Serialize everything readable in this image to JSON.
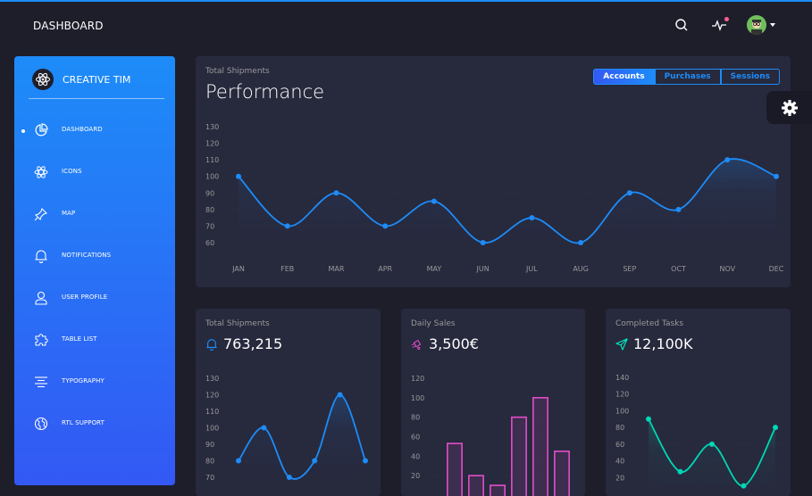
{
  "navbar": {
    "brand": "DASHBOARD"
  },
  "sidebar": {
    "logo_text": "CREATIVE TIM",
    "items": [
      {
        "label": "DASHBOARD",
        "icon": "chart-pie-icon",
        "active": true
      },
      {
        "label": "ICONS",
        "icon": "atom-icon",
        "active": false
      },
      {
        "label": "MAP",
        "icon": "pin-icon",
        "active": false
      },
      {
        "label": "NOTIFICATIONS",
        "icon": "bell-icon",
        "active": false
      },
      {
        "label": "USER PROFILE",
        "icon": "user-icon",
        "active": false
      },
      {
        "label": "TABLE LIST",
        "icon": "puzzle-icon",
        "active": false
      },
      {
        "label": "TYPOGRAPHY",
        "icon": "align-center-icon",
        "active": false
      },
      {
        "label": "RTL SUPPORT",
        "icon": "world-icon",
        "active": false
      }
    ]
  },
  "main_chart": {
    "subtitle": "Total Shipments",
    "title": "Performance",
    "buttons": [
      "Accounts",
      "Purchases",
      "Sessions"
    ],
    "active_button": "Accounts"
  },
  "small_cards": [
    {
      "subtitle": "Total Shipments",
      "value": "763,215",
      "icon": "bell-icon",
      "icon_color": "#1d8cf8"
    },
    {
      "subtitle": "Daily Sales",
      "value": "3,500€",
      "icon": "delivery-fast-icon",
      "icon_color": "#e14eca"
    },
    {
      "subtitle": "Completed Tasks",
      "value": "12,100K",
      "icon": "send-icon",
      "icon_color": "#00f2c3"
    }
  ],
  "colors": {
    "primary": "#1d8cf8",
    "pink": "#e14eca",
    "teal": "#00d6b4",
    "card": "#27293d",
    "background": "#1e1e2b"
  },
  "chart_data": [
    {
      "type": "line",
      "categories": [
        "JAN",
        "FEB",
        "MAR",
        "APR",
        "MAY",
        "JUN",
        "JUL",
        "AUG",
        "SEP",
        "OCT",
        "NOV",
        "DEC"
      ],
      "values": [
        100,
        70,
        90,
        70,
        85,
        60,
        75,
        60,
        90,
        80,
        110,
        100
      ],
      "yticks": [
        60,
        70,
        80,
        90,
        100,
        110,
        120,
        130
      ],
      "ylim": [
        60,
        130
      ],
      "grid": true
    },
    {
      "type": "line",
      "values": [
        80,
        100,
        70,
        80,
        120,
        80
      ],
      "yticks": [
        70,
        80,
        90,
        100,
        110,
        120,
        130
      ],
      "ylim": [
        70,
        130
      ]
    },
    {
      "type": "bar",
      "values": [
        53,
        20,
        10,
        80,
        100,
        45
      ],
      "yticks": [
        20,
        40,
        60,
        80,
        100,
        120
      ],
      "ylim": [
        0,
        120
      ]
    },
    {
      "type": "line",
      "values": [
        90,
        27,
        60,
        10,
        80
      ],
      "yticks": [
        20,
        40,
        60,
        80,
        100,
        120,
        140
      ],
      "ylim": [
        0,
        140
      ]
    }
  ]
}
